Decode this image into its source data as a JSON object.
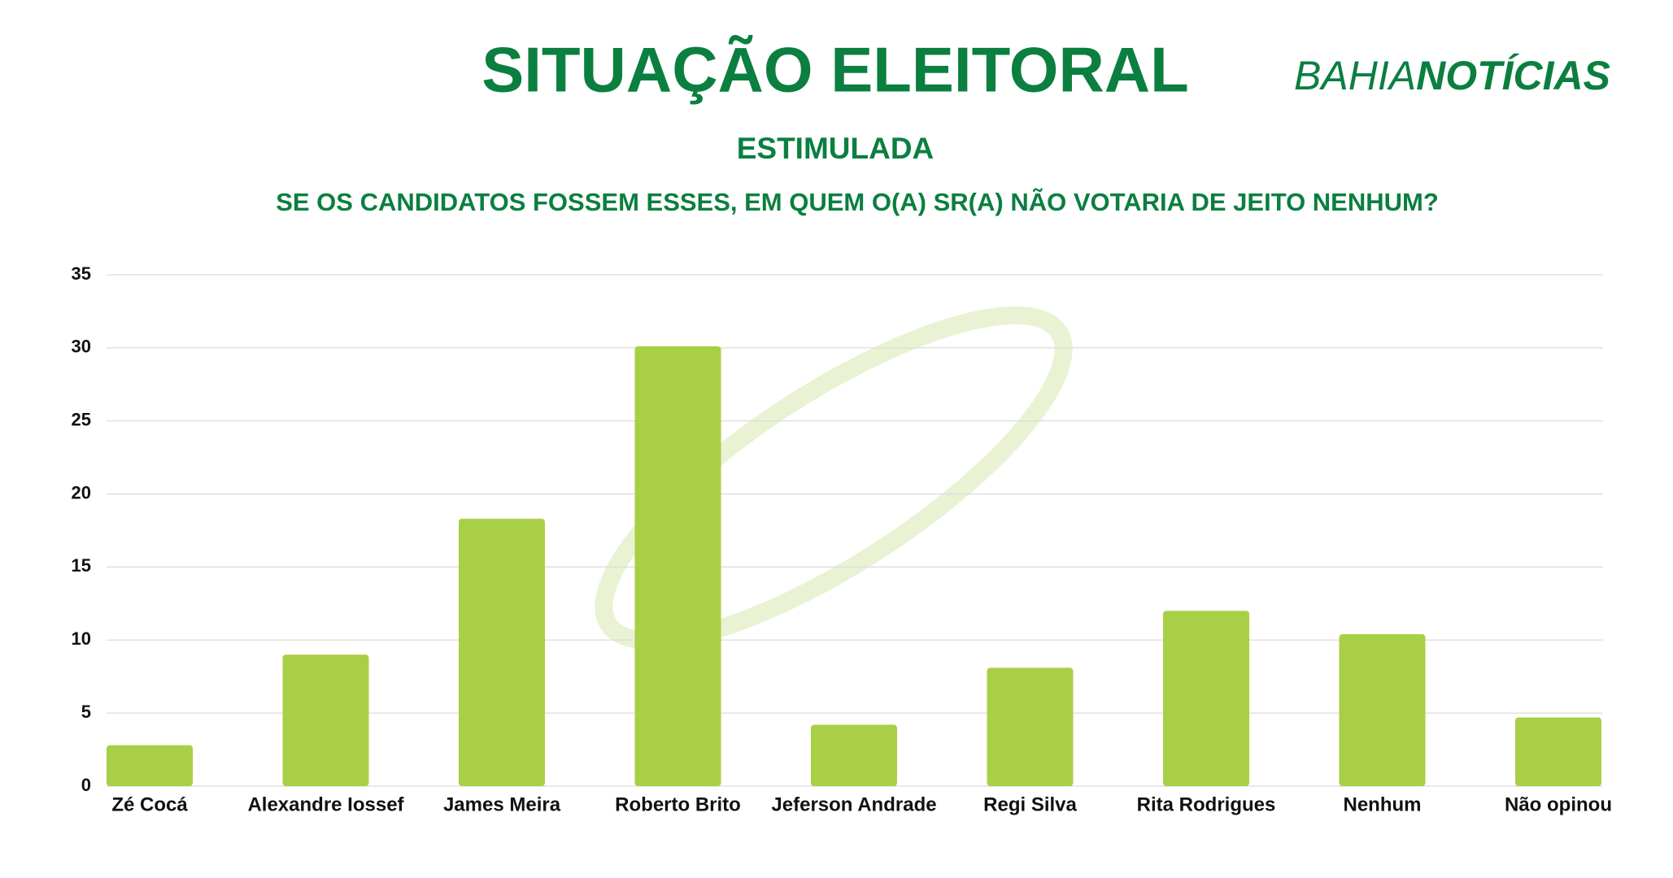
{
  "brand": {
    "part1": "BAHIA",
    "part2": "NOTÍCIAS"
  },
  "chart_data": {
    "type": "bar",
    "title": "SITUAÇÃO ELEITORAL",
    "subtitle": "ESTIMULADA",
    "question": "SE OS CANDIDATOS FOSSEM ESSES, EM QUEM O(A) SR(A) NÃO VOTARIA DE JEITO NENHUM?",
    "categories": [
      "Zé Cocá",
      "Alexandre Iossef",
      "James Meira",
      "Roberto Brito",
      "Jeferson Andrade",
      "Regi Silva",
      "Rita Rodrigues",
      "Nenhum",
      "Não opinou"
    ],
    "values": [
      2.8,
      9.0,
      18.3,
      30.1,
      4.2,
      8.1,
      12.0,
      10.4,
      4.7
    ],
    "color": "#a8cf45",
    "ylim": [
      0,
      35
    ],
    "yticks": [
      0,
      5,
      10,
      15,
      20,
      25,
      30,
      35
    ],
    "grid": true
  }
}
